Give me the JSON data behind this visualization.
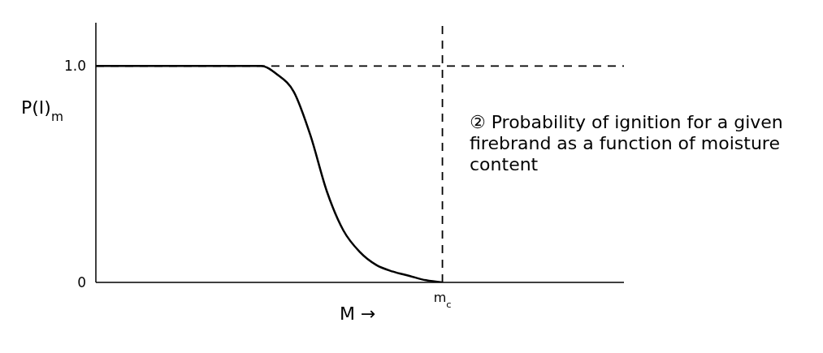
{
  "chart_data": {
    "type": "line",
    "xlabel": "M →",
    "ylabel": "P(I)$_{m}$",
    "categories": [
      null,
      null,
      null,
      null,
      null,
      null,
      null,
      null,
      null,
      null,
      null,
      null,
      null,
      null,
      null,
      null,
      null,
      null,
      null,
      null,
      null,
      "m$_{c}$",
      null,
      null,
      null,
      null,
      null,
      null,
      null,
      null,
      null,
      null,
      null
    ],
    "values": [
      1,
      1,
      1,
      1,
      1,
      1,
      1,
      1,
      1,
      1,
      1,
      0.96,
      0.88,
      0.68,
      0.42,
      0.24,
      0.14,
      0.08,
      0.05,
      0.03,
      0.01,
      0,
      null,
      null,
      null,
      null,
      null,
      null,
      null,
      null,
      null,
      null,
      null
    ],
    "color": "#000000",
    "ylim": [
      0,
      1.2
    ],
    "yticks": [
      0,
      {
        "value": 1,
        "label": "1.0"
      }
    ],
    "grid": false,
    "marker": "none",
    "line_style": "solid",
    "ref_lines": [
      {
        "axis": "y",
        "value": 1,
        "line_style": "dashed",
        "color": "#000000"
      },
      {
        "axis": "x",
        "value": "m$_{c}$",
        "line_style": "dashed",
        "color": "#000000"
      }
    ],
    "annotations": [
      "② Probability of ignition for a given firebrand as a function of moisture content"
    ]
  }
}
